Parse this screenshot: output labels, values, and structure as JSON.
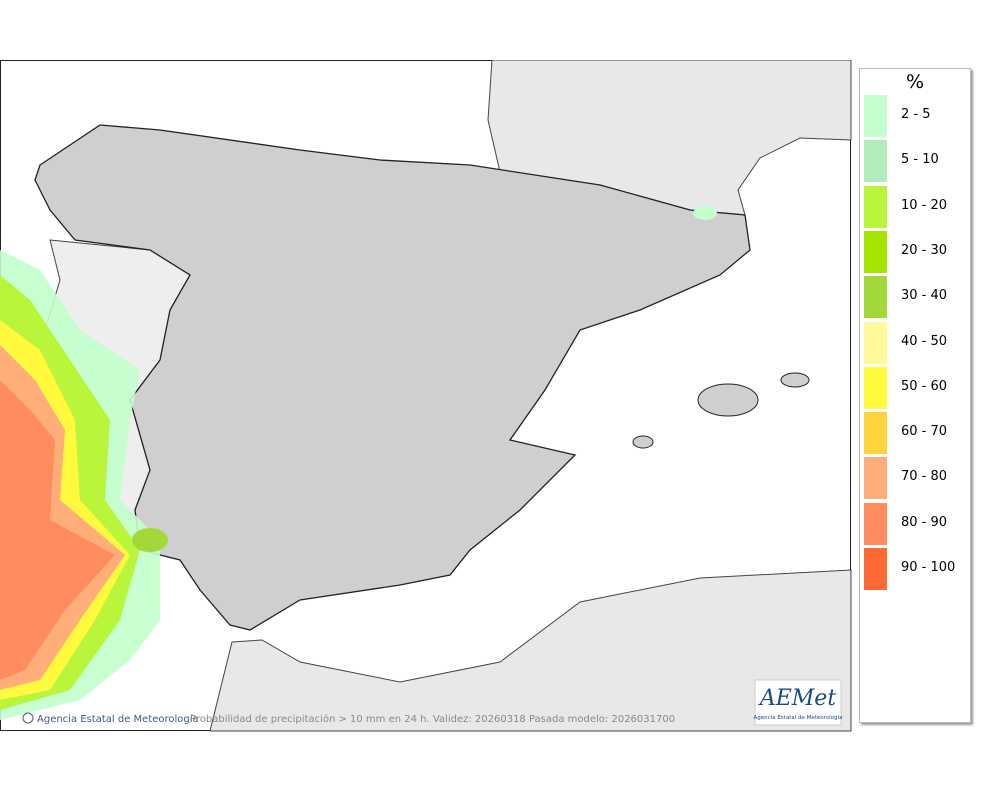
{
  "legend": {
    "title": "%",
    "items": [
      {
        "label": "2 - 5",
        "color": "#c2ffcc"
      },
      {
        "label": "5 - 10",
        "color": "#b2ebbc"
      },
      {
        "label": "10 - 20",
        "color": "#b8f53b"
      },
      {
        "label": "20 - 30",
        "color": "#a6e500"
      },
      {
        "label": "30 - 40",
        "color": "#a3d83b"
      },
      {
        "label": "40 - 50",
        "color": "#fffa99"
      },
      {
        "label": "50 - 60",
        "color": "#fffa3d"
      },
      {
        "label": "60 - 70",
        "color": "#ffd33d"
      },
      {
        "label": "70 - 80",
        "color": "#ffae7a"
      },
      {
        "label": "80 - 90",
        "color": "#ff8c5c"
      },
      {
        "label": "90 - 100",
        "color": "#ff6933"
      }
    ]
  },
  "footer": {
    "credit": "Agencia Estatal de Meteorología",
    "caption": "Probabilidad de precipitación > 10 mm en 24 h. Validez: 20260318 Pasada modelo: 2026031700"
  },
  "logo": {
    "name": "AEMet",
    "subtitle": "Agencia Estatal de Meteorología"
  }
}
